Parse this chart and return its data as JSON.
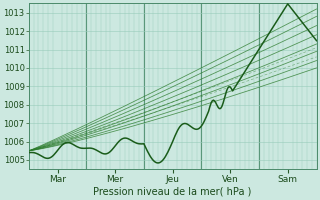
{
  "xlabel": "Pression niveau de la mer( hPa )",
  "ylim": [
    1004.5,
    1013.5
  ],
  "xlim": [
    0,
    120
  ],
  "yticks": [
    1005,
    1006,
    1007,
    1008,
    1009,
    1010,
    1011,
    1012,
    1013
  ],
  "xtick_positions": [
    12,
    36,
    60,
    84,
    108
  ],
  "xtick_labels": [
    "Mar",
    "Mer",
    "Jeu",
    "Ven",
    "Sam"
  ],
  "day_lines": [
    24,
    48,
    72,
    96
  ],
  "bg_color": "#cce8e0",
  "grid_color": "#99ccbb",
  "line_color_dark": "#1a5c1a",
  "line_color_mid": "#2a7a2a",
  "line_color_light": "#4aaa4a"
}
